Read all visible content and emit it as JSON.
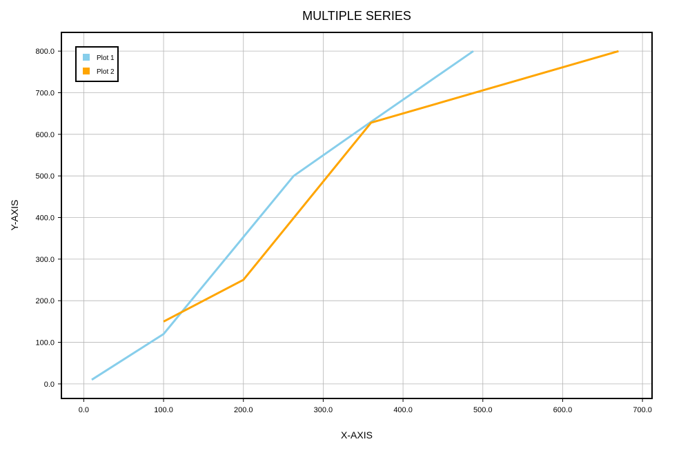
{
  "chart_data": {
    "type": "line",
    "title": "MULTIPLE SERIES",
    "xlabel": "X-AXIS",
    "ylabel": "Y-AXIS",
    "xlim": [
      -28,
      712
    ],
    "ylim": [
      -35,
      845
    ],
    "x_ticks": [
      0,
      100,
      200,
      300,
      400,
      500,
      600,
      700
    ],
    "x_tick_labels": [
      "0.0",
      "100.0",
      "200.0",
      "300.0",
      "400.0",
      "500.0",
      "600.0",
      "700.0"
    ],
    "y_ticks": [
      0,
      100,
      200,
      300,
      400,
      500,
      600,
      700,
      800
    ],
    "y_tick_labels": [
      "0.0",
      "100.0",
      "200.0",
      "300.0",
      "400.0",
      "500.0",
      "600.0",
      "700.0",
      "800.0"
    ],
    "grid": true,
    "legend_position": "top-left",
    "series": [
      {
        "name": "Plot 1",
        "color": "#87CEEB",
        "points": [
          [
            10,
            10
          ],
          [
            100,
            120
          ],
          [
            263,
            500
          ],
          [
            360,
            630
          ],
          [
            488,
            800
          ]
        ]
      },
      {
        "name": "Plot 2",
        "color": "#FFA500",
        "points": [
          [
            100,
            150
          ],
          [
            200,
            250
          ],
          [
            360,
            628
          ],
          [
            670,
            800
          ]
        ]
      }
    ]
  }
}
